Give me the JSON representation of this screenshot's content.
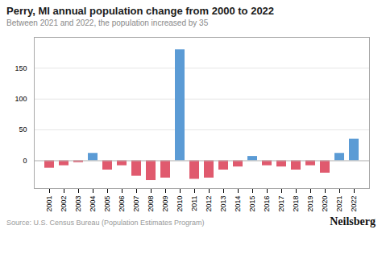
{
  "chart_data": {
    "type": "bar",
    "title": "Perry, MI annual population change from 2000 to 2022",
    "subtitle": "Between 2021 and 2022, the population increased by 35",
    "source": "Source: U.S. Census Bureau (Population Estimates Program)",
    "branding": "Neilsberg",
    "categories": [
      "2001",
      "2002",
      "2003",
      "2004",
      "2005",
      "2006",
      "2007",
      "2008",
      "2009",
      "2010",
      "2011",
      "2012",
      "2013",
      "2014",
      "2015",
      "2016",
      "2017",
      "2018",
      "2019",
      "2020",
      "2021",
      "2022"
    ],
    "values": [
      -12,
      -8,
      -3,
      12,
      -15,
      -8,
      -25,
      -32,
      -28,
      180,
      -30,
      -28,
      -15,
      -10,
      7,
      -8,
      -10,
      -15,
      -8,
      -20,
      12,
      35
    ],
    "colors": [
      "#E05A6E",
      "#E05A6E",
      "#E05A6E",
      "#5B9BD5",
      "#E05A6E",
      "#E05A6E",
      "#E05A6E",
      "#E05A6E",
      "#E05A6E",
      "#5B9BD5",
      "#E05A6E",
      "#E05A6E",
      "#E05A6E",
      "#E05A6E",
      "#5B9BD5",
      "#E05A6E",
      "#E05A6E",
      "#E05A6E",
      "#E05A6E",
      "#E05A6E",
      "#5B9BD5",
      "#5B9BD5"
    ],
    "ylim": [
      -45,
      200
    ],
    "yticks": [
      0,
      50,
      100,
      150
    ],
    "grid": true
  }
}
